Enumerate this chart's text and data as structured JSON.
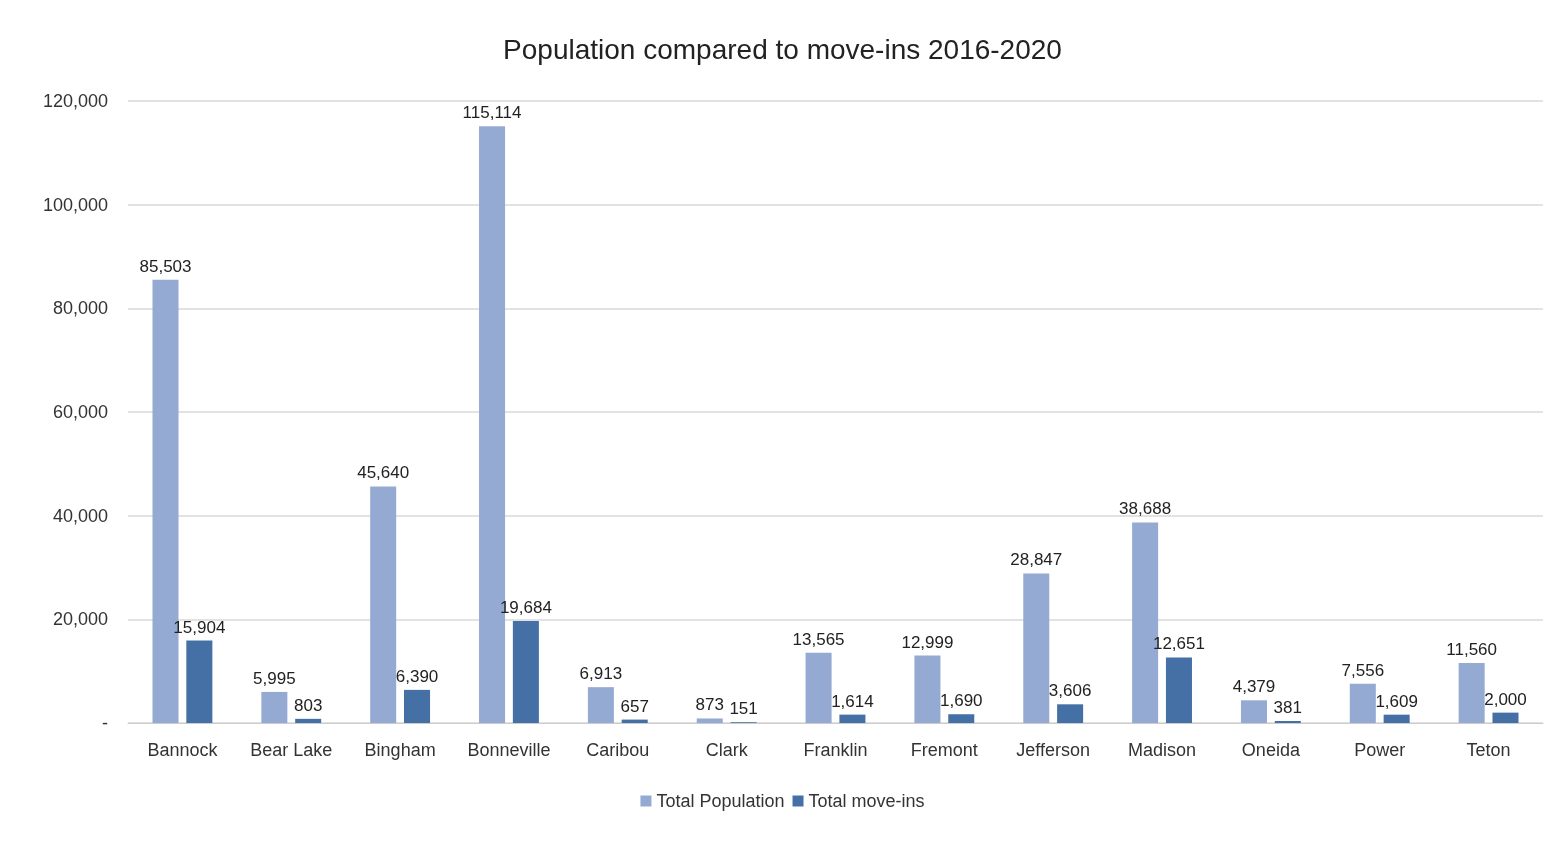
{
  "chart_data": {
    "type": "bar",
    "title": "Population compared to move-ins 2016-2020",
    "categories": [
      "Bannock",
      "Bear Lake",
      "Bingham",
      "Bonneville",
      "Caribou",
      "Clark",
      "Franklin",
      "Fremont",
      "Jefferson",
      "Madison",
      "Oneida",
      "Power",
      "Teton"
    ],
    "series": [
      {
        "name": "Total Population",
        "color": "#95aad3",
        "values": [
          85503,
          5995,
          45640,
          115114,
          6913,
          873,
          13565,
          12999,
          28847,
          38688,
          4379,
          7556,
          11560
        ],
        "value_labels": [
          "85,503",
          "5,995",
          "45,640",
          "115,114",
          "6,913",
          "873",
          "13,565",
          "12,999",
          "28,847",
          "38,688",
          "4,379",
          "7,556",
          "11,560"
        ]
      },
      {
        "name": "Total move-ins",
        "color": "#4470a6",
        "values": [
          15904,
          803,
          6390,
          19684,
          657,
          151,
          1614,
          1690,
          3606,
          12651,
          381,
          1609,
          2000
        ],
        "value_labels": [
          "15,904",
          "803",
          "6,390",
          "19,684",
          "657",
          "151",
          "1,614",
          "1,690",
          "3,606",
          "12,651",
          "381",
          "1,609",
          "2,000"
        ]
      }
    ],
    "ylim": [
      0,
      120000
    ],
    "yticks": [
      {
        "value": 0,
        "label": "-"
      },
      {
        "value": 20000,
        "label": "20,000"
      },
      {
        "value": 40000,
        "label": "40,000"
      },
      {
        "value": 60000,
        "label": "60,000"
      },
      {
        "value": 80000,
        "label": "80,000"
      },
      {
        "value": 100000,
        "label": "100,000"
      },
      {
        "value": 120000,
        "label": "120,000"
      }
    ],
    "grid": "y",
    "legend": "bottom"
  }
}
